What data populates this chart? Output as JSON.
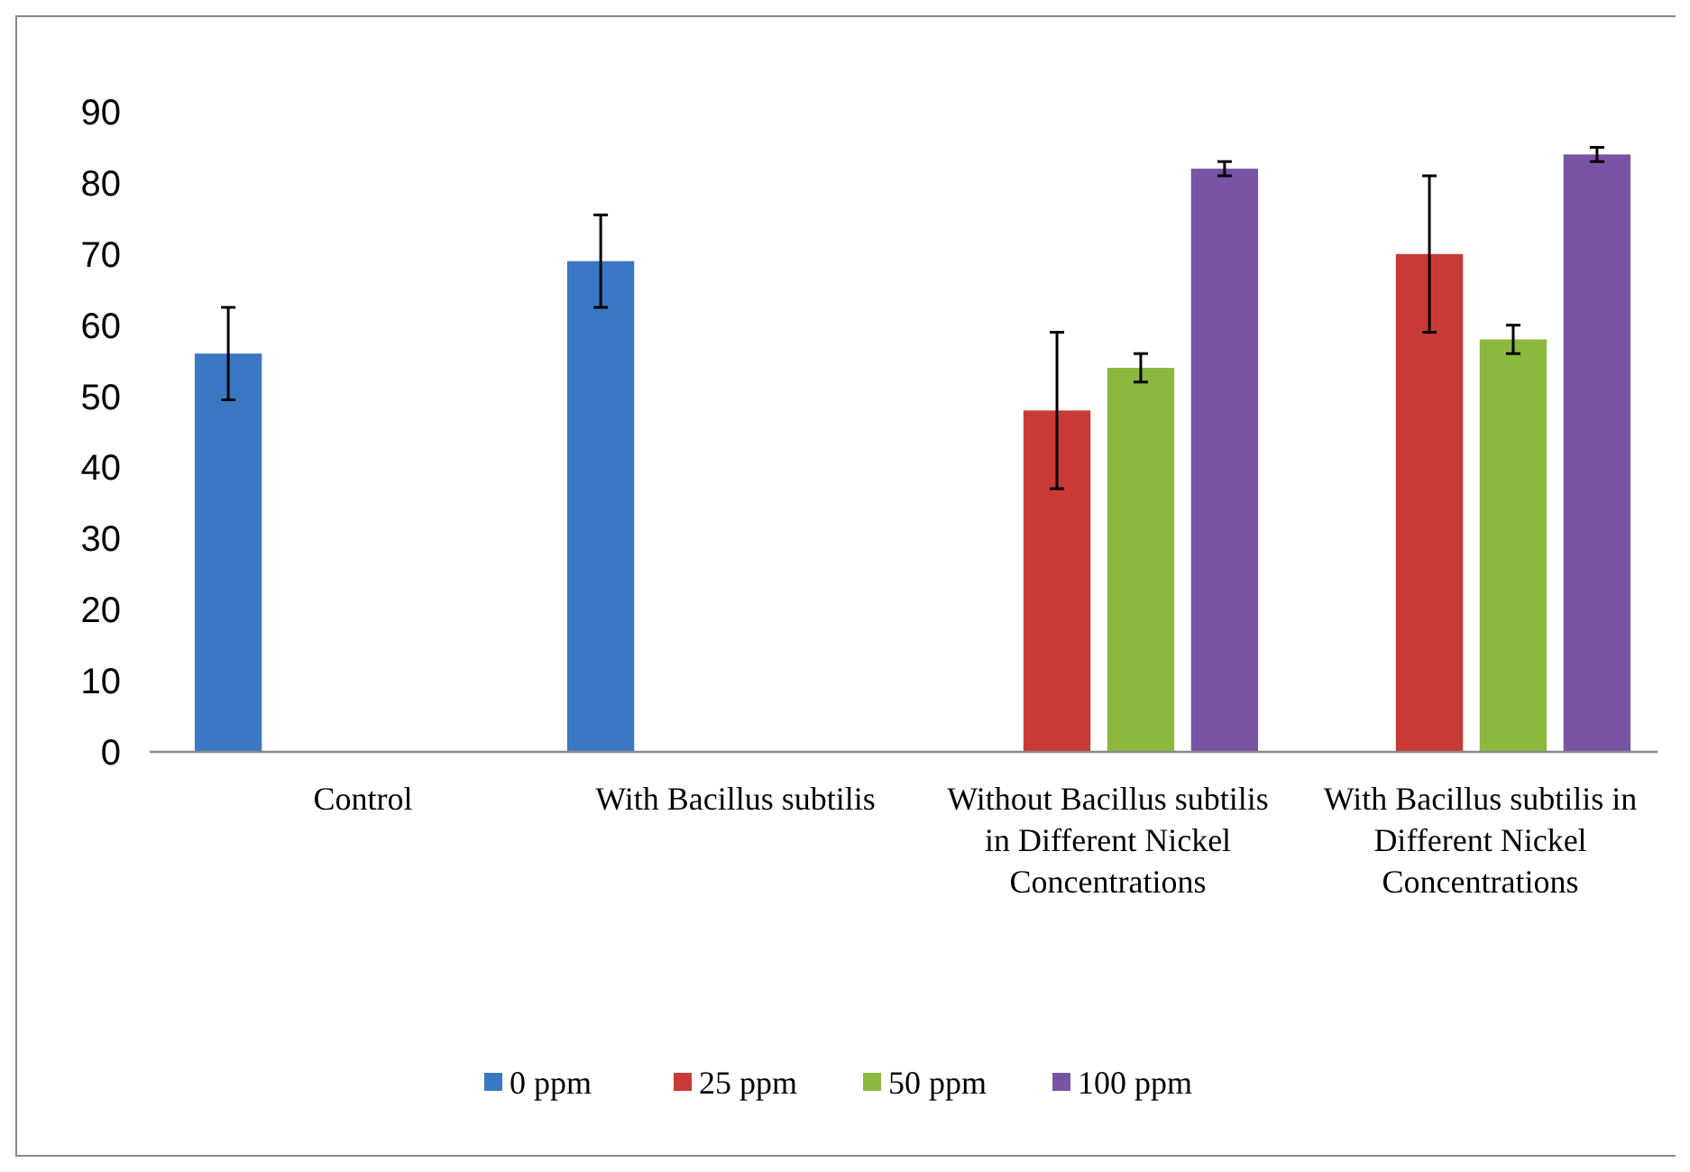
{
  "chart_data": {
    "type": "bar",
    "categories": [
      "Control",
      "With Bacillus subtilis",
      "Without Bacillus subtilis in Different Nickel Concentrations",
      "With Bacillus subtilis in Different Nickel Concentrations"
    ],
    "series": [
      {
        "name": "0 ppm",
        "color": "#3b78c4",
        "values": [
          56,
          69,
          null,
          null
        ],
        "errors": [
          6.5,
          6.5,
          null,
          null
        ]
      },
      {
        "name": "25 ppm",
        "color": "#c93a36",
        "values": [
          null,
          null,
          48,
          70
        ],
        "errors": [
          null,
          null,
          11,
          11
        ]
      },
      {
        "name": "50 ppm",
        "color": "#8cb83e",
        "values": [
          null,
          null,
          54,
          58
        ],
        "errors": [
          null,
          null,
          2,
          2
        ]
      },
      {
        "name": "100 ppm",
        "color": "#7954a4",
        "values": [
          null,
          null,
          82,
          84
        ],
        "errors": [
          null,
          null,
          1,
          1
        ]
      }
    ],
    "ylim": [
      0,
      90
    ],
    "yticks": [
      0,
      10,
      20,
      30,
      40,
      50,
      60,
      70,
      80,
      90
    ],
    "grid": false,
    "legend": "bottom"
  }
}
